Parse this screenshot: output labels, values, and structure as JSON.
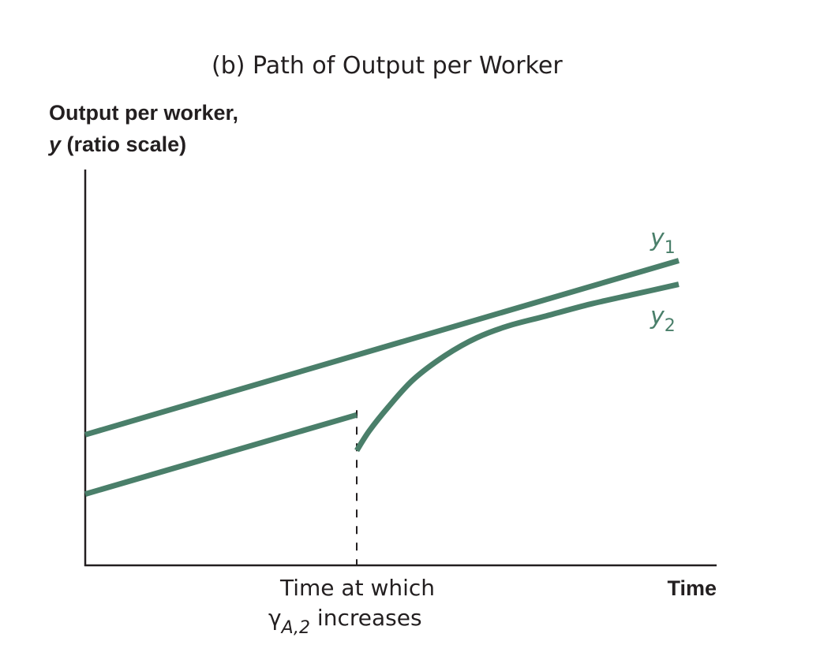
{
  "chart_data": {
    "type": "line",
    "title": "(b) Path of Output per Worker",
    "ylabel_line1": "Output per worker,",
    "ylabel_var": "y",
    "ylabel_rest": " (ratio scale)",
    "xlabel": "Time",
    "event_label": {
      "line1": "Time at which",
      "gamma": "γ",
      "subscript": "A,2",
      "rest": " increases"
    },
    "x_range": [
      0,
      100
    ],
    "y_range": [
      0,
      100
    ],
    "event_x": 43,
    "series": [
      {
        "name": "y",
        "subscript": "1",
        "color": "#4a7f6a",
        "points": [
          [
            0,
            33
          ],
          [
            94,
            77
          ]
        ]
      },
      {
        "name": "y",
        "subscript": "2",
        "color": "#4a7f6a",
        "before_points": [
          [
            0,
            18
          ],
          [
            43,
            38
          ]
        ],
        "after_points": [
          [
            43,
            29
          ],
          [
            45,
            34
          ],
          [
            48,
            40
          ],
          [
            52,
            47
          ],
          [
            57,
            53
          ],
          [
            62,
            57.5
          ],
          [
            67,
            60.5
          ],
          [
            73,
            63
          ],
          [
            80,
            66
          ],
          [
            87,
            68.5
          ],
          [
            94,
            71
          ]
        ]
      }
    ],
    "grid": false,
    "axes_ticks": false
  }
}
